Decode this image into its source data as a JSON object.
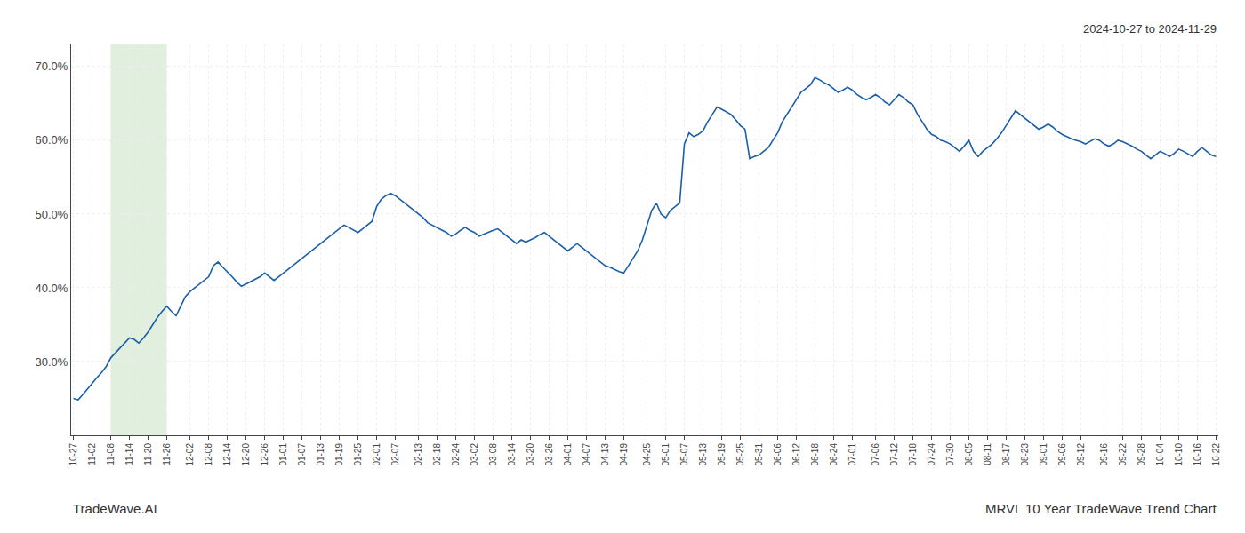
{
  "chart_data": {
    "type": "line",
    "subtitle": "2024-10-27 to 2024-11-29",
    "annotations": [
      "TradeWave.AI",
      "MRVL 10 Year TradeWave Trend Chart"
    ],
    "categories": [
      "10-27",
      null,
      null,
      null,
      "11-02",
      null,
      null,
      null,
      "11-08",
      null,
      null,
      null,
      "11-14",
      null,
      null,
      null,
      "11-20",
      null,
      null,
      null,
      "11-26",
      null,
      null,
      null,
      null,
      "12-02",
      null,
      null,
      null,
      "12-08",
      null,
      null,
      null,
      "12-14",
      null,
      null,
      null,
      "12-20",
      null,
      null,
      null,
      "12-26",
      null,
      null,
      null,
      "01-01",
      null,
      null,
      null,
      "01-07",
      null,
      null,
      null,
      "01-13",
      null,
      null,
      null,
      "01-19",
      null,
      null,
      null,
      "01-25",
      null,
      null,
      null,
      "02-01",
      null,
      null,
      null,
      "02-07",
      null,
      null,
      null,
      null,
      "02-13",
      null,
      null,
      null,
      "02-18",
      null,
      null,
      null,
      "02-24",
      null,
      null,
      null,
      "03-02",
      null,
      null,
      null,
      "03-08",
      null,
      null,
      null,
      "03-14",
      null,
      null,
      null,
      "03-20",
      null,
      null,
      null,
      "03-26",
      null,
      null,
      null,
      "04-01",
      null,
      null,
      null,
      "04-07",
      null,
      null,
      null,
      "04-13",
      null,
      null,
      null,
      "04-19",
      null,
      null,
      null,
      null,
      "04-25",
      null,
      null,
      null,
      "05-01",
      null,
      null,
      null,
      "05-07",
      null,
      null,
      null,
      "05-13",
      null,
      null,
      null,
      "05-19",
      null,
      null,
      null,
      "05-25",
      null,
      null,
      null,
      "05-31",
      null,
      null,
      null,
      "06-06",
      null,
      null,
      null,
      "06-12",
      null,
      null,
      null,
      "06-18",
      null,
      null,
      null,
      "06-24",
      null,
      null,
      null,
      "07-01",
      null,
      null,
      null,
      null,
      "07-06",
      null,
      null,
      null,
      "07-12",
      null,
      null,
      null,
      "07-18",
      null,
      null,
      null,
      "07-24",
      null,
      null,
      null,
      "07-30",
      null,
      null,
      null,
      "08-05",
      null,
      null,
      null,
      "08-11",
      null,
      null,
      null,
      "08-17",
      null,
      null,
      null,
      "08-23",
      null,
      null,
      null,
      "09-01",
      null,
      null,
      null,
      "09-06",
      null,
      null,
      null,
      "09-12",
      null,
      null,
      null,
      null,
      "09-16",
      null,
      null,
      null,
      "09-22",
      null,
      null,
      null,
      "09-28",
      null,
      null,
      null,
      "10-04",
      null,
      null,
      null,
      "10-10",
      null,
      null,
      null,
      "10-16",
      null,
      null,
      null,
      "10-22"
    ],
    "values": [
      25.0,
      24.8,
      25.5,
      26.3,
      27.0,
      27.8,
      28.5,
      29.3,
      30.5,
      31.2,
      31.8,
      32.5,
      33.2,
      33.0,
      32.5,
      33.2,
      34.0,
      35.0,
      36.0,
      36.8,
      37.5,
      36.8,
      36.2,
      37.5,
      38.8,
      39.5,
      40.0,
      40.5,
      41.0,
      41.5,
      43.0,
      43.5,
      42.8,
      42.2,
      41.5,
      40.8,
      40.2,
      40.5,
      40.8,
      41.2,
      41.5,
      42.0,
      41.5,
      41.0,
      41.5,
      42.0,
      42.5,
      43.0,
      43.5,
      44.0,
      44.5,
      45.0,
      45.5,
      46.0,
      46.5,
      47.0,
      47.5,
      48.0,
      48.5,
      48.2,
      47.8,
      47.5,
      48.0,
      48.5,
      49.0,
      51.0,
      52.0,
      52.5,
      52.8,
      52.5,
      52.0,
      51.5,
      51.0,
      50.5,
      50.0,
      49.5,
      48.8,
      48.5,
      48.2,
      47.8,
      47.5,
      47.0,
      47.3,
      47.8,
      48.2,
      47.8,
      47.5,
      47.0,
      47.3,
      47.6,
      47.8,
      48.0,
      47.5,
      47.0,
      46.5,
      46.0,
      46.5,
      46.2,
      46.5,
      46.8,
      47.2,
      47.5,
      47.0,
      46.5,
      46.0,
      45.5,
      45.0,
      45.5,
      46.0,
      45.5,
      45.0,
      44.5,
      44.0,
      43.5,
      43.0,
      42.8,
      42.5,
      42.2,
      42.0,
      43.0,
      44.0,
      45.0,
      46.5,
      48.5,
      50.5,
      51.5,
      50.0,
      49.5,
      50.5,
      51.0,
      51.5,
      59.5,
      61.0,
      60.5,
      60.8,
      61.3,
      62.5,
      63.5,
      64.5,
      64.2,
      63.8,
      63.5,
      62.8,
      62.0,
      61.5,
      57.5,
      57.8,
      58.0,
      58.5,
      59.0,
      60.0,
      61.0,
      62.5,
      63.5,
      64.5,
      65.5,
      66.5,
      67.0,
      67.5,
      68.5,
      68.2,
      67.8,
      67.5,
      67.0,
      66.5,
      66.8,
      67.2,
      66.8,
      66.2,
      65.8,
      65.5,
      65.8,
      66.2,
      65.8,
      65.2,
      64.8,
      65.5,
      66.2,
      65.8,
      65.2,
      64.8,
      63.5,
      62.5,
      61.5,
      60.8,
      60.5,
      60.0,
      59.8,
      59.5,
      59.0,
      58.5,
      59.2,
      60.0,
      58.5,
      57.8,
      58.5,
      59.0,
      59.5,
      60.2,
      61.0,
      62.0,
      63.0,
      64.0,
      63.5,
      63.0,
      62.5,
      62.0,
      61.5,
      61.8,
      62.2,
      61.8,
      61.2,
      60.8,
      60.5,
      60.2,
      60.0,
      59.8,
      59.5,
      59.8,
      60.2,
      60.0,
      59.5,
      59.2,
      59.5,
      60.0,
      59.8,
      59.5,
      59.2,
      58.8,
      58.5,
      58.0,
      57.5,
      58.0,
      58.5,
      58.2,
      57.8,
      58.2,
      58.8,
      58.5,
      58.2,
      57.8,
      58.5,
      59.0,
      58.5,
      58.0,
      57.8
    ],
    "color": "#1a5fa8",
    "highlight": {
      "start": "11-08",
      "end": "11-26",
      "color": "#d4e8d0"
    },
    "ylim": [
      20.0,
      73.0
    ],
    "yticks": [
      {
        "value": 30.0,
        "label": "30.0%"
      },
      {
        "value": 40.0,
        "label": "40.0%"
      },
      {
        "value": 50.0,
        "label": "50.0%"
      },
      {
        "value": 60.0,
        "label": "60.0%"
      },
      {
        "value": 70.0,
        "label": "70.0%"
      }
    ],
    "grid": true
  }
}
